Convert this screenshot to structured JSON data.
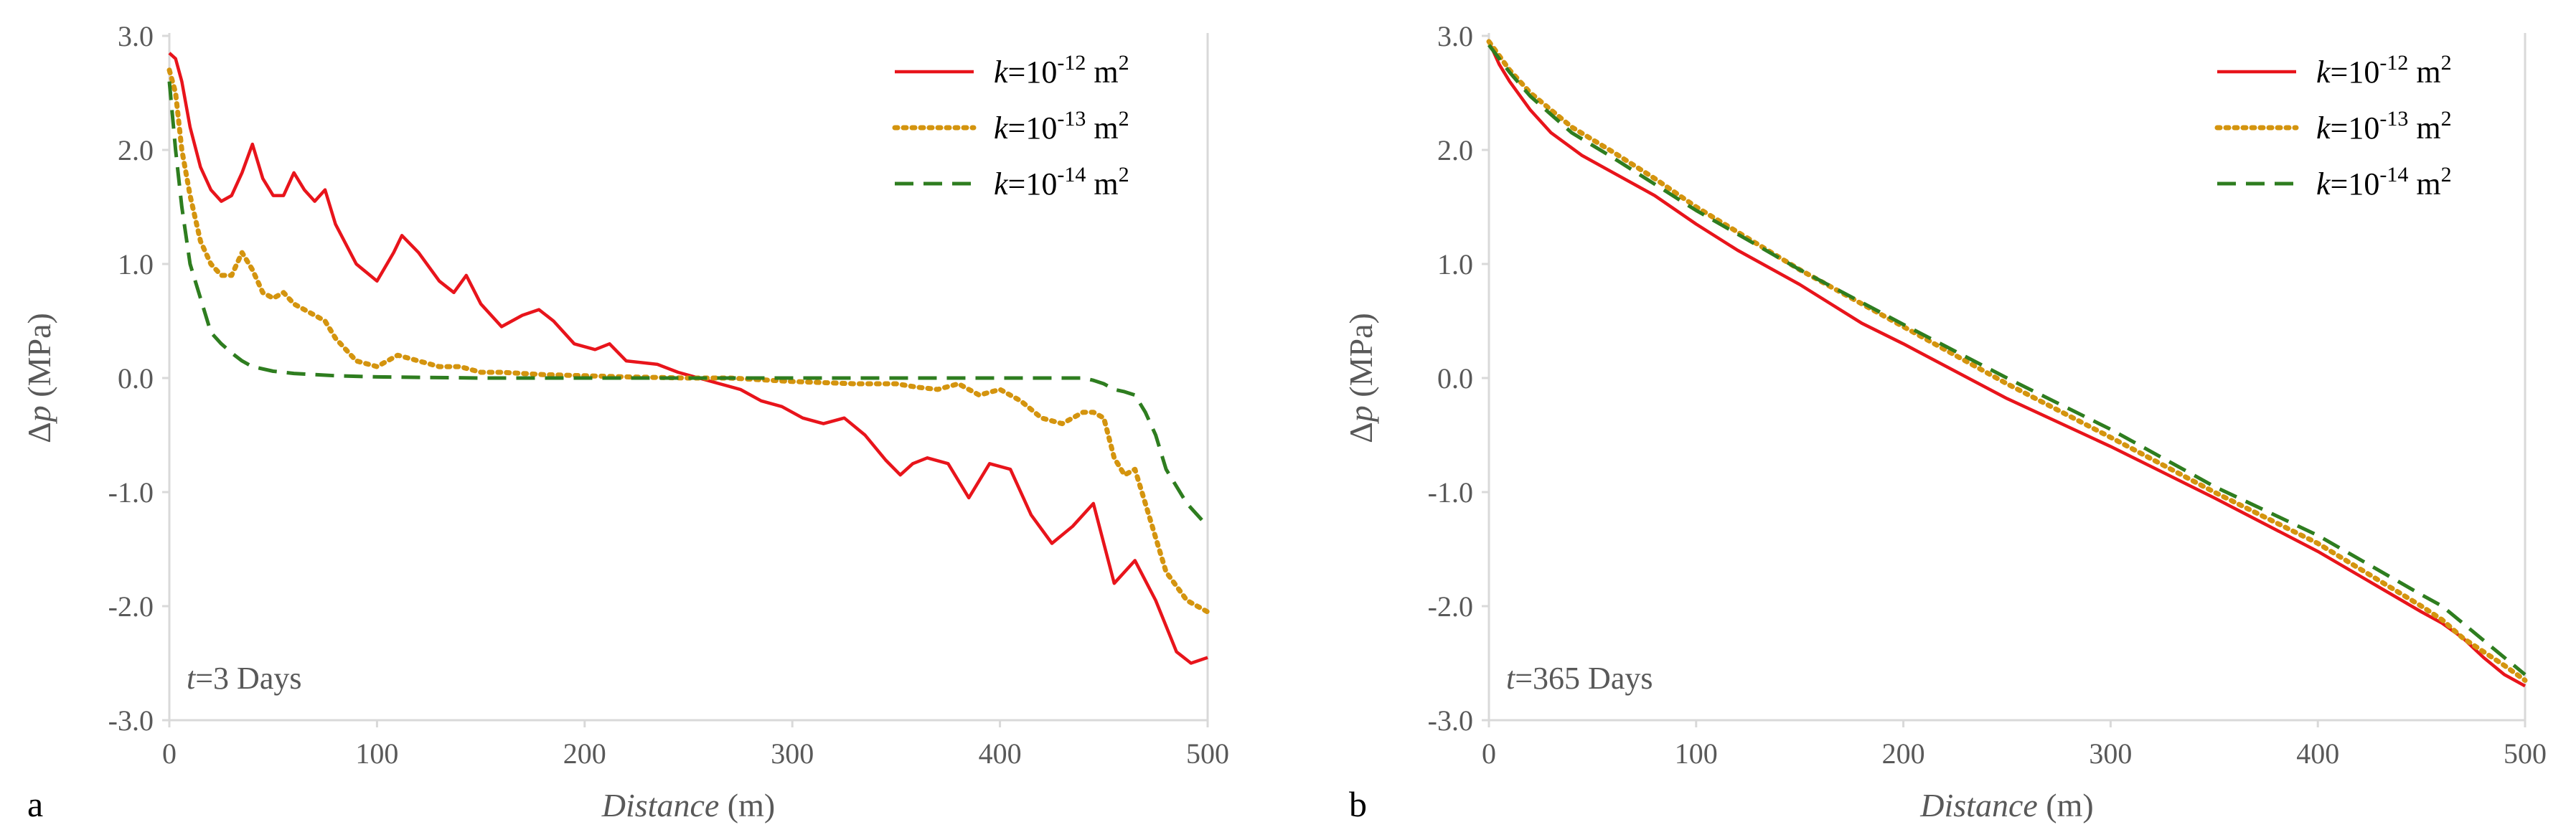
{
  "chart_data": [
    {
      "type": "line",
      "panel_label": "a",
      "annotation": {
        "var": "t",
        "text": "=3 Days"
      },
      "xlabel": {
        "main": "Distance",
        "unit": " (m)"
      },
      "ylabel": {
        "prefix": "Δ",
        "var": "p",
        "unit": " (MPa)"
      },
      "xlim": [
        0,
        500
      ],
      "ylim": [
        -3.0,
        3.0
      ],
      "xticks": [
        0,
        100,
        200,
        300,
        400,
        500
      ],
      "yticks": [
        3.0,
        2.0,
        1.0,
        0.0,
        -1.0,
        -2.0,
        -3.0
      ],
      "xtick_labels": [
        "0",
        "100",
        "200",
        "300",
        "400",
        "500"
      ],
      "ytick_labels": [
        "3.0",
        "2.0",
        "1.0",
        "0.0",
        "-1.0",
        "-2.0",
        "-3.0"
      ],
      "legend_position": "top-right",
      "series": [
        {
          "name": "k=10-12 m2",
          "legend": {
            "var": "k",
            "eq": "=10",
            "exp": "-12",
            "unit": " m",
            "unit_exp": "2"
          },
          "color": "#e8141b",
          "style": "solid",
          "x": [
            0,
            3,
            6,
            10,
            15,
            20,
            25,
            30,
            35,
            40,
            45,
            50,
            55,
            60,
            65,
            70,
            75,
            80,
            90,
            100,
            108,
            112,
            120,
            130,
            137,
            143,
            150,
            160,
            170,
            178,
            185,
            195,
            205,
            212,
            220,
            235,
            245,
            255,
            265,
            275,
            285,
            295,
            305,
            315,
            325,
            335,
            345,
            352,
            358,
            365,
            375,
            385,
            395,
            405,
            415,
            425,
            435,
            445,
            455,
            465,
            475,
            485,
            492,
            500
          ],
          "y": [
            2.85,
            2.8,
            2.6,
            2.2,
            1.85,
            1.65,
            1.55,
            1.6,
            1.8,
            2.05,
            1.75,
            1.6,
            1.6,
            1.8,
            1.65,
            1.55,
            1.65,
            1.35,
            1.0,
            0.85,
            1.1,
            1.25,
            1.1,
            0.85,
            0.75,
            0.9,
            0.65,
            0.45,
            0.55,
            0.6,
            0.5,
            0.3,
            0.25,
            0.3,
            0.15,
            0.12,
            0.05,
            0.0,
            -0.05,
            -0.1,
            -0.2,
            -0.25,
            -0.35,
            -0.4,
            -0.35,
            -0.5,
            -0.72,
            -0.85,
            -0.75,
            -0.7,
            -0.75,
            -1.05,
            -0.75,
            -0.8,
            -1.2,
            -1.45,
            -1.3,
            -1.1,
            -1.8,
            -1.6,
            -1.95,
            -2.4,
            -2.5,
            -2.45
          ]
        },
        {
          "name": "k=10-13 m2",
          "legend": {
            "var": "k",
            "eq": "=10",
            "exp": "-13",
            "unit": " m",
            "unit_exp": "2"
          },
          "color": "#d4940e",
          "style": "dotted",
          "x": [
            0,
            3,
            6,
            10,
            15,
            20,
            25,
            30,
            35,
            40,
            45,
            50,
            55,
            60,
            65,
            70,
            75,
            80,
            90,
            100,
            110,
            120,
            130,
            140,
            150,
            160,
            180,
            200,
            220,
            250,
            270,
            300,
            330,
            350,
            360,
            370,
            380,
            390,
            400,
            410,
            420,
            430,
            440,
            445,
            450,
            455,
            460,
            465,
            470,
            475,
            480,
            490,
            500
          ],
          "y": [
            2.7,
            2.5,
            2.0,
            1.6,
            1.2,
            1.0,
            0.9,
            0.9,
            1.1,
            0.95,
            0.75,
            0.7,
            0.75,
            0.65,
            0.6,
            0.55,
            0.5,
            0.35,
            0.15,
            0.1,
            0.2,
            0.15,
            0.1,
            0.1,
            0.05,
            0.05,
            0.03,
            0.02,
            0.01,
            0.0,
            0.0,
            -0.03,
            -0.05,
            -0.05,
            -0.08,
            -0.1,
            -0.05,
            -0.15,
            -0.1,
            -0.2,
            -0.35,
            -0.4,
            -0.3,
            -0.3,
            -0.35,
            -0.7,
            -0.85,
            -0.8,
            -1.1,
            -1.4,
            -1.7,
            -1.95,
            -2.05
          ]
        },
        {
          "name": "k=10-14 m2",
          "legend": {
            "var": "k",
            "eq": "=10",
            "exp": "-14",
            "unit": " m",
            "unit_exp": "2"
          },
          "color": "#2e7d1f",
          "style": "dashed",
          "x": [
            0,
            3,
            6,
            10,
            15,
            20,
            25,
            30,
            35,
            40,
            50,
            60,
            70,
            80,
            100,
            150,
            200,
            250,
            300,
            350,
            400,
            430,
            440,
            445,
            450,
            455,
            460,
            465,
            470,
            475,
            480,
            490,
            500
          ],
          "y": [
            2.6,
            2.0,
            1.5,
            1.0,
            0.7,
            0.4,
            0.3,
            0.22,
            0.15,
            0.1,
            0.06,
            0.04,
            0.03,
            0.02,
            0.01,
            0.0,
            0.0,
            0.0,
            0.0,
            0.0,
            0.0,
            0.0,
            0.0,
            -0.02,
            -0.05,
            -0.1,
            -0.12,
            -0.15,
            -0.3,
            -0.5,
            -0.8,
            -1.1,
            -1.3
          ]
        }
      ]
    },
    {
      "type": "line",
      "panel_label": "b",
      "annotation": {
        "var": "t",
        "text": "=365 Days"
      },
      "xlabel": {
        "main": "Distance",
        "unit": " (m)"
      },
      "ylabel": {
        "prefix": "Δ",
        "var": "p",
        "unit": " (MPa)"
      },
      "xlim": [
        0,
        500
      ],
      "ylim": [
        -3.0,
        3.0
      ],
      "xticks": [
        0,
        100,
        200,
        300,
        400,
        500
      ],
      "yticks": [
        3.0,
        2.0,
        1.0,
        0.0,
        -1.0,
        -2.0,
        -3.0
      ],
      "xtick_labels": [
        "0",
        "100",
        "200",
        "300",
        "400",
        "500"
      ],
      "ytick_labels": [
        "3.0",
        "2.0",
        "1.0",
        "0.0",
        "-1.0",
        "-2.0",
        "-3.0"
      ],
      "legend_position": "top-right",
      "series": [
        {
          "name": "k=10-12 m2",
          "legend": {
            "var": "k",
            "eq": "=10",
            "exp": "-12",
            "unit": " m",
            "unit_exp": "2"
          },
          "color": "#e8141b",
          "style": "solid",
          "x": [
            0,
            5,
            10,
            20,
            30,
            45,
            60,
            80,
            100,
            120,
            150,
            180,
            200,
            250,
            300,
            320,
            350,
            400,
            450,
            460,
            470,
            480,
            490,
            500
          ],
          "y": [
            2.95,
            2.75,
            2.6,
            2.35,
            2.15,
            1.95,
            1.8,
            1.6,
            1.35,
            1.12,
            0.82,
            0.48,
            0.3,
            -0.18,
            -0.6,
            -0.78,
            -1.05,
            -1.52,
            -2.05,
            -2.15,
            -2.28,
            -2.45,
            -2.6,
            -2.7
          ]
        },
        {
          "name": "k=10-13 m2",
          "legend": {
            "var": "k",
            "eq": "=10",
            "exp": "-13",
            "unit": " m",
            "unit_exp": "2"
          },
          "color": "#d4940e",
          "style": "dotted",
          "x": [
            0,
            10,
            20,
            40,
            60,
            80,
            100,
            150,
            200,
            250,
            300,
            350,
            400,
            450,
            460,
            470,
            480,
            490,
            500
          ],
          "y": [
            2.95,
            2.7,
            2.5,
            2.2,
            1.98,
            1.75,
            1.5,
            0.95,
            0.45,
            -0.05,
            -0.52,
            -1.0,
            -1.45,
            -2.0,
            -2.12,
            -2.28,
            -2.4,
            -2.52,
            -2.65
          ]
        },
        {
          "name": "k=10-14 m2",
          "legend": {
            "var": "k",
            "eq": "=10",
            "exp": "-14",
            "unit": " m",
            "unit_exp": "2"
          },
          "color": "#2e7d1f",
          "style": "dashed",
          "x": [
            0,
            10,
            20,
            40,
            60,
            80,
            100,
            150,
            200,
            250,
            300,
            350,
            400,
            450,
            460,
            470,
            480,
            490,
            500
          ],
          "y": [
            2.92,
            2.68,
            2.47,
            2.15,
            1.93,
            1.7,
            1.47,
            0.95,
            0.47,
            0.0,
            -0.45,
            -0.95,
            -1.38,
            -1.9,
            -2.0,
            -2.15,
            -2.3,
            -2.45,
            -2.6
          ]
        }
      ]
    }
  ]
}
